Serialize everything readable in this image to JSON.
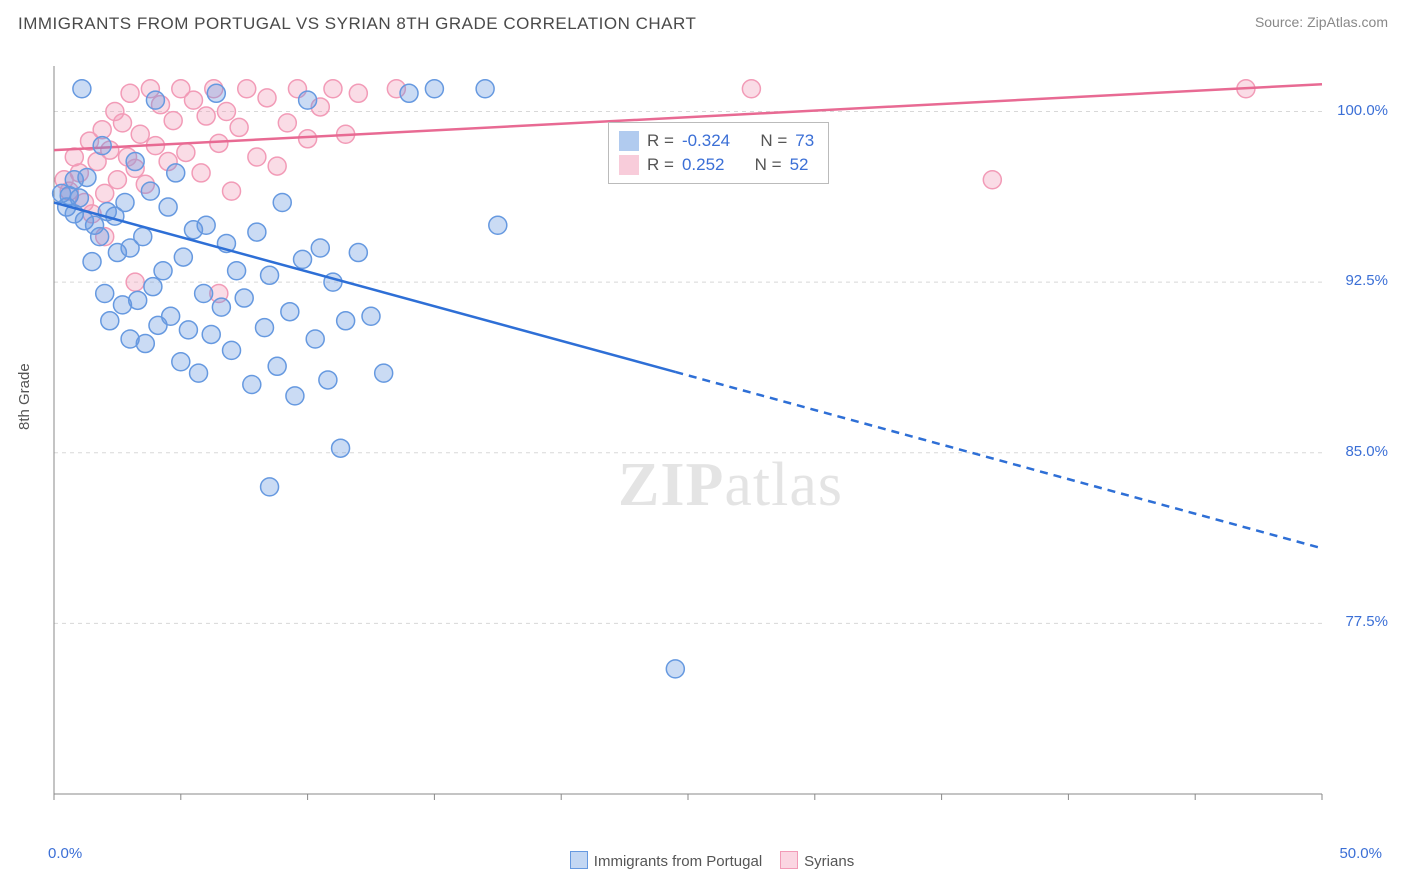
{
  "title": "IMMIGRANTS FROM PORTUGAL VS SYRIAN 8TH GRADE CORRELATION CHART",
  "source": "Source: ZipAtlas.com",
  "ylabel": "8th Grade",
  "watermark_bold": "ZIP",
  "watermark_light": "atlas",
  "chart": {
    "type": "scatter-with-regression",
    "background_color": "#ffffff",
    "grid_color": "#d8d8d8",
    "axis_label_color": "#555555",
    "tick_color": "#3b6fd6",
    "xlim": [
      0,
      50
    ],
    "ylim": [
      70,
      102
    ],
    "x_tick_positions": [
      0,
      5,
      10,
      15,
      20,
      25,
      30,
      35,
      40,
      45,
      50
    ],
    "x_tick_labels_shown": {
      "0": "0.0%",
      "50": "50.0%"
    },
    "y_gridlines": [
      77.5,
      85.0,
      92.5,
      100.0
    ],
    "y_tick_labels": [
      "77.5%",
      "85.0%",
      "92.5%",
      "100.0%"
    ],
    "marker_radius": 9,
    "marker_stroke_width": 1.5,
    "marker_fill_opacity": 0.35,
    "line_width": 2.5,
    "series": [
      {
        "name": "Immigrants from Portugal",
        "color": "#6699e0",
        "line_color": "#2e6fd6",
        "R": "-0.324",
        "N": "73",
        "regression": {
          "x0": 0,
          "y0": 96.0,
          "x1": 50,
          "y1": 80.8,
          "solid_until_x": 24.5
        },
        "points": [
          [
            0.3,
            96.4
          ],
          [
            0.5,
            95.8
          ],
          [
            0.6,
            96.3
          ],
          [
            0.8,
            97.0
          ],
          [
            0.8,
            95.5
          ],
          [
            1.0,
            96.2
          ],
          [
            1.1,
            101.0
          ],
          [
            1.2,
            95.2
          ],
          [
            1.3,
            97.1
          ],
          [
            1.5,
            93.4
          ],
          [
            1.6,
            95.0
          ],
          [
            1.8,
            94.5
          ],
          [
            1.9,
            98.5
          ],
          [
            2.0,
            92.0
          ],
          [
            2.1,
            95.6
          ],
          [
            2.2,
            90.8
          ],
          [
            2.4,
            95.4
          ],
          [
            2.5,
            93.8
          ],
          [
            2.7,
            91.5
          ],
          [
            2.8,
            96.0
          ],
          [
            3.0,
            94.0
          ],
          [
            3.0,
            90.0
          ],
          [
            3.2,
            97.8
          ],
          [
            3.3,
            91.7
          ],
          [
            3.5,
            94.5
          ],
          [
            3.6,
            89.8
          ],
          [
            3.8,
            96.5
          ],
          [
            3.9,
            92.3
          ],
          [
            4.0,
            100.5
          ],
          [
            4.1,
            90.6
          ],
          [
            4.3,
            93.0
          ],
          [
            4.5,
            95.8
          ],
          [
            4.6,
            91.0
          ],
          [
            4.8,
            97.3
          ],
          [
            5.0,
            89.0
          ],
          [
            5.1,
            93.6
          ],
          [
            5.3,
            90.4
          ],
          [
            5.5,
            94.8
          ],
          [
            5.7,
            88.5
          ],
          [
            5.9,
            92.0
          ],
          [
            6.0,
            95.0
          ],
          [
            6.2,
            90.2
          ],
          [
            6.4,
            100.8
          ],
          [
            6.6,
            91.4
          ],
          [
            6.8,
            94.2
          ],
          [
            7.0,
            89.5
          ],
          [
            7.2,
            93.0
          ],
          [
            7.5,
            91.8
          ],
          [
            7.8,
            88.0
          ],
          [
            8.0,
            94.7
          ],
          [
            8.3,
            90.5
          ],
          [
            8.5,
            92.8
          ],
          [
            8.8,
            88.8
          ],
          [
            9.0,
            96.0
          ],
          [
            9.3,
            91.2
          ],
          [
            9.5,
            87.5
          ],
          [
            9.8,
            93.5
          ],
          [
            10.0,
            100.5
          ],
          [
            10.3,
            90.0
          ],
          [
            10.5,
            94.0
          ],
          [
            10.8,
            88.2
          ],
          [
            11.0,
            92.5
          ],
          [
            11.3,
            85.2
          ],
          [
            11.5,
            90.8
          ],
          [
            12.0,
            93.8
          ],
          [
            12.5,
            91.0
          ],
          [
            13.0,
            88.5
          ],
          [
            14.0,
            100.8
          ],
          [
            15.0,
            101.0
          ],
          [
            17.0,
            101.0
          ],
          [
            17.5,
            95.0
          ],
          [
            8.5,
            83.5
          ],
          [
            24.5,
            75.5
          ]
        ]
      },
      {
        "name": "Syrians",
        "color": "#f29bb7",
        "line_color": "#e86a93",
        "R": "0.252",
        "N": "52",
        "regression": {
          "x0": 0,
          "y0": 98.3,
          "x1": 50,
          "y1": 101.2,
          "solid_until_x": 50
        },
        "points": [
          [
            0.4,
            97.0
          ],
          [
            0.6,
            96.5
          ],
          [
            0.8,
            98.0
          ],
          [
            1.0,
            97.3
          ],
          [
            1.2,
            96.0
          ],
          [
            1.4,
            98.7
          ],
          [
            1.5,
            95.5
          ],
          [
            1.7,
            97.8
          ],
          [
            1.9,
            99.2
          ],
          [
            2.0,
            96.4
          ],
          [
            2.2,
            98.3
          ],
          [
            2.4,
            100.0
          ],
          [
            2.5,
            97.0
          ],
          [
            2.7,
            99.5
          ],
          [
            2.9,
            98.0
          ],
          [
            3.0,
            100.8
          ],
          [
            3.2,
            97.5
          ],
          [
            3.4,
            99.0
          ],
          [
            3.6,
            96.8
          ],
          [
            3.8,
            101.0
          ],
          [
            4.0,
            98.5
          ],
          [
            4.2,
            100.3
          ],
          [
            4.5,
            97.8
          ],
          [
            4.7,
            99.6
          ],
          [
            5.0,
            101.0
          ],
          [
            5.2,
            98.2
          ],
          [
            5.5,
            100.5
          ],
          [
            5.8,
            97.3
          ],
          [
            6.0,
            99.8
          ],
          [
            6.3,
            101.0
          ],
          [
            6.5,
            98.6
          ],
          [
            6.8,
            100.0
          ],
          [
            7.0,
            96.5
          ],
          [
            7.3,
            99.3
          ],
          [
            7.6,
            101.0
          ],
          [
            8.0,
            98.0
          ],
          [
            8.4,
            100.6
          ],
          [
            8.8,
            97.6
          ],
          [
            9.2,
            99.5
          ],
          [
            9.6,
            101.0
          ],
          [
            10.0,
            98.8
          ],
          [
            10.5,
            100.2
          ],
          [
            11.0,
            101.0
          ],
          [
            11.5,
            99.0
          ],
          [
            12.0,
            100.8
          ],
          [
            6.5,
            92.0
          ],
          [
            3.2,
            92.5
          ],
          [
            13.5,
            101.0
          ],
          [
            27.5,
            101.0
          ],
          [
            37.0,
            97.0
          ],
          [
            47.0,
            101.0
          ],
          [
            2.0,
            94.5
          ]
        ]
      }
    ]
  },
  "bottom_legend": [
    {
      "label": "Immigrants from Portugal",
      "fill": "#c3d7f3",
      "stroke": "#6699e0"
    },
    {
      "label": "Syrians",
      "fill": "#fbd6e2",
      "stroke": "#f29bb7"
    }
  ]
}
